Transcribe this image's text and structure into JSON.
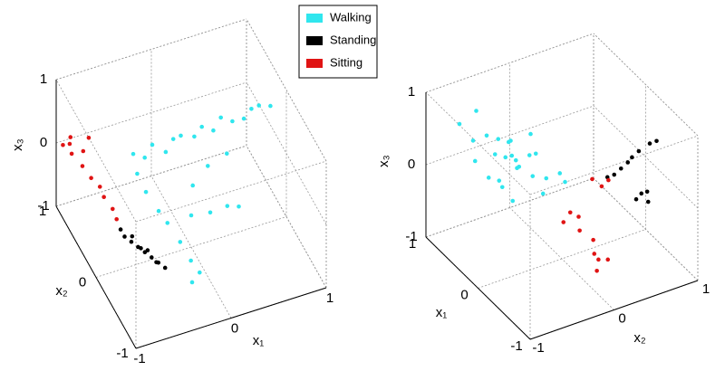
{
  "chart_data": [
    {
      "type": "scatter3d",
      "xlabel": "x₁",
      "ylabel": "x₂",
      "zlabel": "x₃",
      "xlim": [
        -1,
        1
      ],
      "ylim": [
        -1,
        1
      ],
      "zlim": [
        -1,
        1
      ],
      "xticks": [
        -1,
        0,
        1
      ],
      "yticks": [
        -1,
        0,
        1
      ],
      "zticks": [
        -1,
        0,
        1
      ],
      "grid": true,
      "series": [
        {
          "name": "Walking",
          "color": "#30e6ee",
          "x": [
            -0.4,
            -0.3,
            -0.2,
            -0.1,
            0,
            0.1,
            0.2,
            0.3,
            0.4,
            0.5,
            0.6,
            0.7,
            0.8,
            0.9,
            1,
            -0.4,
            -0.35,
            -0.3,
            -0.25,
            -0.2,
            -0.15,
            -0.2,
            -0.1,
            0,
            0.2,
            0.4,
            0.5,
            0.1,
            0.3,
            0.5
          ],
          "y": [
            0.5,
            0.45,
            0.5,
            0.4,
            0.45,
            0.5,
            0.4,
            0.45,
            0.4,
            0.45,
            0.4,
            0.35,
            0.4,
            0.45,
            0.4,
            0.4,
            0.3,
            0.1,
            0,
            -0.2,
            -0.35,
            -0.5,
            -0.45,
            0,
            0,
            0.05,
            0,
            0.2,
            0.3,
            0.3
          ],
          "z": [
            0.1,
            0.05,
            0.15,
            0.1,
            0.2,
            0.15,
            0.2,
            0.25,
            0.2,
            0.3,
            0.25,
            0.3,
            0.35,
            0.3,
            0.3,
            -0.1,
            -0.3,
            -0.4,
            -0.5,
            -0.6,
            -0.75,
            -0.9,
            -0.85,
            -0.5,
            -0.55,
            -0.6,
            -0.6,
            -0.3,
            -0.2,
            -0.1
          ]
        },
        {
          "name": "Standing",
          "color": "#000000",
          "x": [
            -0.7,
            -0.6,
            -0.5,
            -0.65,
            -0.55,
            -0.45,
            -0.6,
            -0.5,
            -0.4,
            -0.7,
            -0.55,
            -0.45
          ],
          "y": [
            0,
            -0.1,
            -0.2,
            -0.05,
            -0.15,
            -0.25,
            0.05,
            -0.1,
            -0.3,
            0.1,
            -0.05,
            -0.2
          ],
          "z": [
            -0.5,
            -0.6,
            -0.7,
            -0.55,
            -0.65,
            -0.75,
            -0.6,
            -0.7,
            -0.8,
            -0.5,
            -0.7,
            -0.8
          ]
        },
        {
          "name": "Sitting",
          "color": "#e01414",
          "x": [
            -0.95,
            -0.9,
            -0.85,
            -0.9,
            -0.8,
            -0.85,
            -0.8,
            -0.75,
            -0.75,
            -0.7,
            -0.7,
            -0.7
          ],
          "y": [
            0.95,
            0.9,
            1,
            0.85,
            0.8,
            0.7,
            0.6,
            0.5,
            0.4,
            0.3,
            0.2,
            0.9
          ],
          "z": [
            0,
            0.05,
            0.02,
            -0.05,
            0,
            -0.1,
            -0.2,
            -0.25,
            -0.3,
            -0.4,
            -0.45,
            0.05
          ]
        }
      ]
    },
    {
      "type": "scatter3d",
      "xlabel": "x₁",
      "ylabel": "x₂",
      "zlabel": "x₃",
      "xlim": [
        -1,
        1
      ],
      "ylim": [
        -1,
        1
      ],
      "zlim": [
        -1,
        1
      ],
      "xticks": [
        -1,
        0,
        1
      ],
      "yticks": [
        -1,
        0,
        1
      ],
      "zticks": [
        -1,
        0,
        1
      ],
      "grid": true,
      "series": [
        {
          "color": "#30e6ee",
          "x": [
            0.5,
            0.6,
            0.4,
            0.7,
            0.8,
            0.9,
            1,
            0.3,
            0.2,
            0.5,
            0.6,
            0.4,
            0.7,
            0.8,
            0.3,
            0.5,
            0.9,
            0.6,
            0.4,
            0.7,
            0.2,
            0.1,
            0.8,
            1,
            0.5,
            0.3
          ],
          "y": [
            -0.2,
            -0.3,
            -0.1,
            -0.2,
            -0.4,
            -0.5,
            -0.6,
            0,
            0.1,
            -0.4,
            -0.5,
            -0.3,
            -0.1,
            -0.3,
            -0.2,
            0,
            -0.2,
            0,
            -0.5,
            -0.6,
            -0.1,
            0.1,
            -0.1,
            -0.4,
            -0.3,
            -0.4
          ],
          "z": [
            0,
            0.1,
            -0.1,
            0.2,
            0.3,
            0.2,
            0.4,
            -0.1,
            0,
            -0.2,
            -0.1,
            0.2,
            -0.2,
            0,
            0.3,
            0.1,
            0.1,
            0.3,
            0,
            0.1,
            -0.2,
            -0.05,
            -0.1,
            0.5,
            0.4,
            -0.25
          ]
        },
        {
          "color": "#000000",
          "x": [
            -0.3,
            -0.35,
            -0.4,
            -0.25,
            -0.3,
            -0.2,
            -0.4,
            -0.45,
            -0.35,
            -0.3,
            -0.45,
            -0.15
          ],
          "y": [
            0.6,
            0.7,
            0.8,
            0.55,
            0.65,
            0.5,
            0.7,
            0.75,
            0.8,
            0.7,
            0.85,
            0.45
          ],
          "z": [
            0.3,
            0.45,
            0.55,
            0.2,
            0.35,
            0.1,
            -0.1,
            -0.2,
            -0.15,
            -0.25,
            0.6,
            0.05
          ]
        },
        {
          "color": "#e01414",
          "x": [
            -0.1,
            -0.2,
            0,
            0,
            -0.1,
            -0.2,
            -0.3,
            -0.3,
            -0.4,
            -0.35,
            0.05,
            -0.25
          ],
          "y": [
            0.3,
            0.35,
            0.1,
            0.2,
            0.15,
            0.25,
            0.2,
            0.25,
            0.3,
            0.2,
            0.05,
            0.4
          ],
          "z": [
            0.05,
            0,
            -0.4,
            -0.5,
            -0.6,
            -0.7,
            -0.8,
            -0.9,
            -0.85,
            -1,
            -0.55,
            0.1
          ]
        }
      ]
    }
  ]
}
